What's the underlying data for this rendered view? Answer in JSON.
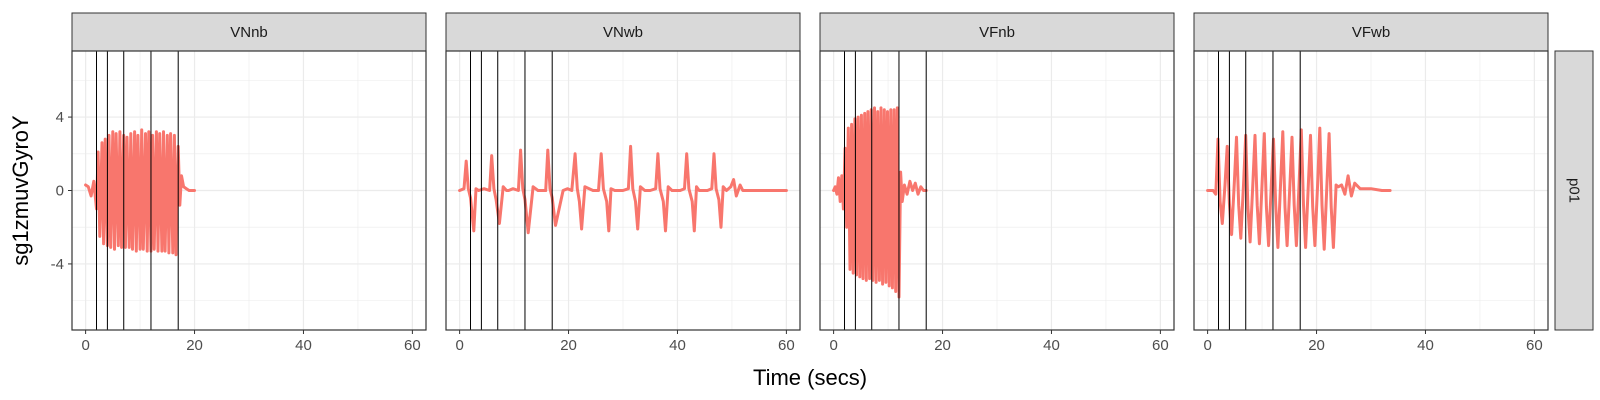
{
  "chart_data": {
    "type": "line",
    "xlabel": "Time (secs)",
    "ylabel": "sg1zmuvGyroY",
    "row_strip": "p01",
    "xlim": [
      -2.5,
      62.5
    ],
    "ylim": [
      -7.6,
      7.6
    ],
    "xticks": [
      0,
      20,
      40,
      60
    ],
    "yticks": [
      -4,
      0,
      4
    ],
    "grid": true,
    "colors": {
      "line": "#F8766D",
      "vline": "#000000",
      "strip_bg": "#D9D9D9",
      "grid": "#EBEBEB",
      "panel_border": "#333333"
    },
    "panels": [
      {
        "name": "VNnb",
        "vlines": [
          2,
          4,
          7,
          12,
          17
        ],
        "series": [
          {
            "x": [
              0,
              0.5,
              1.0,
              1.5,
              2.0,
              2.3,
              2.6,
              3.0,
              3.3,
              3.6,
              4.0,
              4.3,
              4.6,
              5.0,
              5.3,
              5.6,
              6.0,
              6.3,
              6.6,
              7.0,
              7.3,
              7.6,
              8.0,
              8.3,
              8.6,
              9.0,
              9.3,
              9.6,
              10.0,
              10.3,
              10.6,
              11.0,
              11.3,
              11.6,
              12.0,
              12.3,
              12.6,
              13.0,
              13.3,
              13.6,
              14.0,
              14.3,
              14.6,
              15.0,
              15.3,
              15.6,
              16.0,
              16.3,
              16.6,
              17.0,
              17.3,
              17.6,
              18.0,
              18.5,
              19.0,
              20.0
            ],
            "y": [
              0.3,
              0.2,
              -0.3,
              0.5,
              -1.0,
              2.1,
              -2.5,
              2.6,
              -2.9,
              2.8,
              -3.0,
              3.0,
              -3.1,
              3.2,
              -3.2,
              3.1,
              -3.0,
              3.2,
              -3.1,
              3.0,
              -3.1,
              2.9,
              -3.1,
              3.1,
              -3.2,
              3.2,
              -3.3,
              3.0,
              -3.2,
              3.3,
              -3.2,
              3.1,
              -3.3,
              3.2,
              -3.3,
              3.0,
              -3.2,
              3.2,
              -3.3,
              3.1,
              -3.3,
              3.2,
              -3.3,
              3.0,
              -3.4,
              3.1,
              -3.4,
              3.0,
              -3.5,
              2.4,
              -0.8,
              0.8,
              0.2,
              0.1,
              0.0,
              0.0
            ]
          }
        ]
      },
      {
        "name": "VNwb",
        "vlines": [
          2,
          4,
          7,
          12,
          17
        ],
        "series": [
          {
            "x": [
              0,
              0.8,
              1.2,
              1.6,
              2.0,
              2.6,
              3.0,
              3.5,
              4.5,
              5.5,
              5.9,
              6.3,
              6.7,
              7.3,
              8.0,
              8.6,
              9.0,
              9.8,
              10.8,
              11.2,
              11.6,
              12.0,
              12.6,
              13.5,
              14.4,
              15.8,
              16.2,
              16.6,
              17.0,
              17.6,
              19.0,
              19.8,
              20.6,
              21.2,
              21.6,
              22.0,
              22.4,
              23.0,
              24.5,
              25.5,
              26.0,
              26.4,
              27.0,
              27.4,
              27.8,
              28.5,
              30.0,
              31.0,
              31.4,
              31.8,
              32.3,
              32.7,
              33.2,
              34.0,
              35.0,
              36.0,
              36.4,
              36.8,
              37.4,
              37.8,
              38.3,
              39.0,
              40.5,
              41.3,
              41.7,
              42.1,
              42.7,
              43.1,
              43.5,
              44.0,
              45.5,
              46.3,
              46.7,
              47.1,
              47.6,
              48.0,
              48.4,
              49.0,
              49.8,
              50.3,
              50.8,
              51.5,
              52.0,
              52.5,
              54.0,
              56.0,
              58.0,
              60.0
            ],
            "y": [
              0.0,
              0.1,
              1.6,
              0.1,
              -0.4,
              -2.2,
              0.1,
              0.0,
              0.1,
              0.0,
              1.9,
              0.1,
              -0.5,
              -1.8,
              0.2,
              0.0,
              0.0,
              0.1,
              0.0,
              2.2,
              0.1,
              -0.5,
              -2.3,
              0.2,
              0.0,
              0.0,
              2.2,
              0.1,
              -0.4,
              -1.9,
              0.0,
              0.1,
              0.0,
              2.0,
              0.1,
              -0.6,
              -2.1,
              0.2,
              0.0,
              0.0,
              2.0,
              0.1,
              -0.6,
              -2.2,
              0.1,
              0.0,
              0.0,
              0.1,
              2.4,
              0.1,
              -0.6,
              -2.1,
              0.2,
              0.0,
              0.0,
              0.1,
              2.0,
              0.1,
              -0.6,
              -2.2,
              0.2,
              0.0,
              0.0,
              0.1,
              2.0,
              0.1,
              -0.6,
              -2.2,
              0.2,
              0.0,
              0.0,
              0.1,
              2.0,
              0.1,
              -0.5,
              -2.0,
              0.2,
              0.0,
              0.2,
              0.6,
              -0.3,
              0.3,
              0.0,
              0.0,
              0.0,
              0.0,
              0.0,
              0.0
            ]
          }
        ]
      },
      {
        "name": "VFnb",
        "vlines": [
          2,
          4,
          7,
          12,
          17
        ],
        "series": [
          {
            "x": [
              0,
              0.3,
              0.6,
              0.9,
              1.2,
              1.5,
              1.8,
              2.1,
              2.4,
              2.7,
              3.0,
              3.3,
              3.6,
              3.9,
              4.2,
              4.5,
              4.8,
              5.1,
              5.4,
              5.7,
              6.0,
              6.3,
              6.6,
              6.9,
              7.2,
              7.5,
              7.8,
              8.1,
              8.4,
              8.7,
              9.0,
              9.3,
              9.6,
              9.9,
              10.2,
              10.5,
              10.8,
              11.1,
              11.4,
              11.7,
              12.0,
              12.3,
              12.6,
              13.0,
              13.5,
              14.0,
              14.5,
              15.0,
              15.5,
              16.0,
              16.5,
              17.0
            ],
            "y": [
              0.0,
              0.2,
              -0.2,
              0.7,
              -0.6,
              0.8,
              -1.0,
              2.3,
              -2.0,
              3.4,
              -4.3,
              3.6,
              -4.5,
              3.9,
              -4.6,
              4.0,
              -4.7,
              4.1,
              -4.8,
              4.2,
              -4.9,
              4.3,
              -4.8,
              4.4,
              -4.9,
              4.5,
              -5.0,
              4.3,
              -4.9,
              4.5,
              -5.1,
              4.4,
              -5.0,
              4.3,
              -5.2,
              4.4,
              -5.3,
              4.4,
              -5.5,
              4.5,
              -5.8,
              1.0,
              -0.6,
              0.3,
              -0.2,
              0.5,
              0.0,
              0.4,
              -0.2,
              0.2,
              0.0,
              0.0
            ]
          }
        ]
      },
      {
        "name": "VFwb",
        "vlines": [
          2,
          4,
          7,
          12,
          17
        ],
        "series": [
          {
            "x": [
              0,
              1.0,
              1.5,
              1.9,
              2.3,
              2.7,
              3.2,
              3.6,
              4.0,
              4.4,
              4.9,
              5.3,
              5.7,
              6.1,
              6.6,
              7.0,
              7.4,
              7.8,
              8.3,
              8.7,
              9.1,
              9.5,
              10.0,
              10.4,
              10.8,
              11.2,
              11.7,
              12.1,
              12.5,
              12.9,
              13.4,
              13.8,
              14.2,
              14.6,
              15.1,
              15.5,
              15.9,
              16.3,
              16.8,
              17.2,
              17.6,
              18.0,
              18.5,
              18.9,
              19.3,
              19.7,
              20.2,
              20.6,
              21.0,
              21.4,
              21.9,
              22.3,
              22.7,
              23.1,
              23.6,
              24.0,
              24.6,
              25.2,
              25.8,
              26.4,
              27.0,
              28.0,
              30.0,
              32.0,
              33.5
            ],
            "y": [
              0.0,
              0.0,
              -0.2,
              2.8,
              -0.6,
              -1.8,
              0.3,
              2.4,
              -0.7,
              -2.4,
              0.4,
              2.9,
              -0.8,
              -2.6,
              0.4,
              3.0,
              -0.9,
              -2.8,
              0.3,
              3.0,
              -0.8,
              -2.9,
              0.4,
              3.1,
              -0.9,
              -3.0,
              0.3,
              2.8,
              -0.8,
              -3.1,
              0.4,
              3.2,
              -0.9,
              -3.0,
              0.3,
              2.9,
              -0.8,
              -3.0,
              0.4,
              3.3,
              -0.8,
              -3.1,
              0.4,
              3.0,
              -0.9,
              -3.0,
              0.3,
              3.4,
              -0.8,
              -3.2,
              0.3,
              3.1,
              -0.9,
              -3.1,
              0.3,
              0.2,
              0.3,
              -0.2,
              0.8,
              -0.3,
              0.4,
              0.1,
              0.1,
              0.0,
              0.0
            ]
          }
        ]
      }
    ]
  }
}
